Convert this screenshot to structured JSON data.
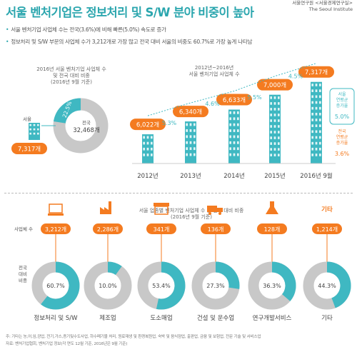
{
  "title": "서울 벤처기업은 정보처리 및 S/W 분야 비중이 높아",
  "publisher": {
    "line1": "서울연구원 <서울경제연구실>",
    "line2": "The Seoul Institute"
  },
  "bullets": [
    "서울 벤처기업 사업체 수는 전국(3.6%)에 비해 빠른(5.0%) 속도로 증가",
    "정보처리 및 S/W 부문의 사업체 수가 3,212개로 가장 많고 전국 대비 서울의 비중도 60.7%로 가장 높게 나타남"
  ],
  "donut_main": {
    "title_lines": [
      "2016년 서울 벤처기업 사업체 수",
      "및 전국 대비 비중",
      "(2016년 9월 기준)"
    ],
    "seoul_label": "서울",
    "seoul_value": "7,317개",
    "share_label": "22.5%",
    "share": 0.225,
    "national_label": "전국",
    "national_value": "32,468개",
    "colors": {
      "seoul": "#3fb8c2",
      "rest": "#c8c8c8"
    }
  },
  "chart_data": [
    {
      "type": "bar",
      "title_lines": [
        "2012년~2016년",
        "서울 벤처기업 사업체 수"
      ],
      "categories": [
        "2012년",
        "2013년",
        "2014년",
        "2015년",
        "2016년 9월"
      ],
      "values": [
        6022,
        6340,
        6633,
        7000,
        7317
      ],
      "value_labels": [
        "6,022개",
        "6,340개",
        "6,633개",
        "7,000개",
        "7,317개"
      ],
      "growth_labels": [
        "5.3%",
        "4.6%",
        "5.5%",
        "4.5%"
      ],
      "ylim": [
        5300,
        7400
      ],
      "annotations": [
        {
          "text_lines": [
            "서울",
            "연평균",
            "증가율"
          ],
          "value": "5.0%"
        },
        {
          "text_lines": [
            "전국",
            "연평균",
            "증가율"
          ],
          "value": "3.6%"
        }
      ],
      "colors": {
        "bar": "#3fb8c2",
        "label": "#f47b20",
        "trend": "#3fb8c2"
      }
    },
    {
      "type": "pie",
      "title_lines": [
        "서울 업종별 벤처기업 사업체 수 및 전국 대비 비중",
        "(2016년 9월 기준)"
      ],
      "row_labels": {
        "count": "사업체 수",
        "share_lines": [
          "전국",
          "대비",
          "비중"
        ]
      },
      "categories": [
        "정보처리 및 S/W",
        "제조업",
        "도소매업",
        "건설 및 운수업",
        "연구개발서비스",
        "기타"
      ],
      "icons": [
        "computer-icon",
        "factory-icon",
        "store-icon",
        "truck-icon",
        "flask-icon",
        "etc-icon"
      ],
      "icon_texts": [
        "",
        "",
        "",
        "",
        "",
        "기타"
      ],
      "count_labels": [
        "3,212개",
        "2,286개",
        "341개",
        "136개",
        "128개",
        "1,214개"
      ],
      "share_labels": [
        "60.7%",
        "10.0%",
        "53.4%",
        "27.3%",
        "36.3%",
        "44.3%"
      ],
      "shares": [
        60.7,
        10.0,
        53.4,
        27.3,
        36.3,
        44.3
      ],
      "colors": {
        "share": "#3fb8c2",
        "rest": "#c8c8c8",
        "count": "#f47b20"
      }
    }
  ],
  "footnote_lines": [
    "주: 기타는 농,어,임,광업, 전기,가스,증기및수도사업, 하수폐기물 처리, 원료재생 및 환경복원업, 숙박 및 음식점업, 출판업, 금융 및 보험업, 전문 기술 및 서비스업",
    "자료: 벤처기업협회, 벤처기업 정보(각 연도 12월 기준, 2016년은 9월 기준)"
  ]
}
